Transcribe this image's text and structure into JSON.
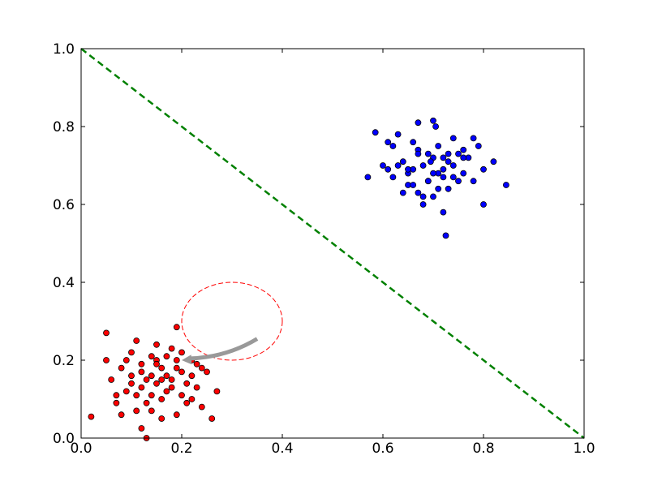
{
  "chart_data": {
    "type": "scatter",
    "xlim": [
      0,
      1
    ],
    "ylim": [
      0,
      1
    ],
    "xticks": [
      {
        "value": 0,
        "label": "0.0"
      },
      {
        "value": 0.2,
        "label": "0.2"
      },
      {
        "value": 0.4,
        "label": "0.4"
      },
      {
        "value": 0.6,
        "label": "0.6"
      },
      {
        "value": 0.8,
        "label": "0.8"
      },
      {
        "value": 1,
        "label": "1.0"
      }
    ],
    "yticks": [
      {
        "value": 0,
        "label": "0.0"
      },
      {
        "value": 0.2,
        "label": "0.2"
      },
      {
        "value": 0.4,
        "label": "0.4"
      },
      {
        "value": 0.6,
        "label": "0.6"
      },
      {
        "value": 0.8,
        "label": "0.8"
      },
      {
        "value": 1,
        "label": "1.0"
      }
    ],
    "grid": false,
    "series": [
      {
        "color": "#ff0000",
        "x": [
          0.05,
          0.02,
          0.12,
          0.19,
          0.27,
          0.26,
          0.13,
          0.1,
          0.15,
          0.18,
          0.2,
          0.22,
          0.12,
          0.14,
          0.16,
          0.08,
          0.09,
          0.11,
          0.17,
          0.21,
          0.23,
          0.24,
          0.06,
          0.07,
          0.13,
          0.15,
          0.19,
          0.18,
          0.1,
          0.14,
          0.16,
          0.2,
          0.22,
          0.12,
          0.08,
          0.17,
          0.25,
          0.11,
          0.09,
          0.15,
          0.13,
          0.19,
          0.21,
          0.18,
          0.16,
          0.14,
          0.12,
          0.1,
          0.07,
          0.23,
          0.2,
          0.17,
          0.15,
          0.05,
          0.11,
          0.24,
          0.19,
          0.14,
          0.22,
          0.16
        ],
        "values": [
          0.27,
          0.055,
          0.025,
          0.285,
          0.12,
          0.05,
          0.0,
          0.22,
          0.2,
          0.15,
          0.17,
          0.1,
          0.13,
          0.16,
          0.1,
          0.18,
          0.12,
          0.25,
          0.21,
          0.14,
          0.19,
          0.08,
          0.15,
          0.11,
          0.09,
          0.14,
          0.06,
          0.23,
          0.16,
          0.07,
          0.18,
          0.22,
          0.16,
          0.19,
          0.06,
          0.12,
          0.17,
          0.11,
          0.2,
          0.24,
          0.15,
          0.18,
          0.09,
          0.13,
          0.05,
          0.21,
          0.17,
          0.14,
          0.09,
          0.13,
          0.11,
          0.16,
          0.19,
          0.2,
          0.07,
          0.18,
          0.2,
          0.11,
          0.2,
          0.15
        ]
      },
      {
        "color": "#0000ff",
        "x": [
          0.725,
          0.845,
          0.585,
          0.67,
          0.8,
          0.57,
          0.82,
          0.7,
          0.65,
          0.75,
          0.68,
          0.72,
          0.62,
          0.64,
          0.66,
          0.74,
          0.76,
          0.71,
          0.69,
          0.73,
          0.6,
          0.78,
          0.63,
          0.67,
          0.7,
          0.77,
          0.61,
          0.65,
          0.72,
          0.79,
          0.68,
          0.74,
          0.66,
          0.71,
          0.73,
          0.64,
          0.69,
          0.75,
          0.62,
          0.7,
          0.76,
          0.67,
          0.72,
          0.78,
          0.63,
          0.68,
          0.71,
          0.74,
          0.66,
          0.7,
          0.705,
          0.695,
          0.73,
          0.65,
          0.76,
          0.69,
          0.61,
          0.8,
          0.72,
          0.67
        ],
        "values": [
          0.52,
          0.65,
          0.785,
          0.81,
          0.6,
          0.67,
          0.71,
          0.815,
          0.68,
          0.66,
          0.7,
          0.72,
          0.75,
          0.63,
          0.69,
          0.77,
          0.68,
          0.64,
          0.73,
          0.71,
          0.7,
          0.66,
          0.78,
          0.74,
          0.62,
          0.72,
          0.69,
          0.65,
          0.67,
          0.75,
          0.6,
          0.7,
          0.76,
          0.68,
          0.64,
          0.71,
          0.66,
          0.73,
          0.67,
          0.72,
          0.74,
          0.63,
          0.69,
          0.77,
          0.7,
          0.62,
          0.75,
          0.67,
          0.65,
          0.68,
          0.8,
          0.71,
          0.73,
          0.69,
          0.72,
          0.66,
          0.76,
          0.69,
          0.58,
          0.73
        ]
      },
      {
        "type": "line",
        "color": "#008000",
        "x": [
          0,
          1
        ],
        "values": [
          1,
          0
        ]
      }
    ],
    "circle": {
      "color": "#ff0000",
      "center": [
        0.3,
        0.3
      ],
      "radius": 0.1
    },
    "arrow": {
      "color": "#999999",
      "from": [
        0.35,
        0.255
      ],
      "to": [
        0.2,
        0.2
      ]
    }
  }
}
